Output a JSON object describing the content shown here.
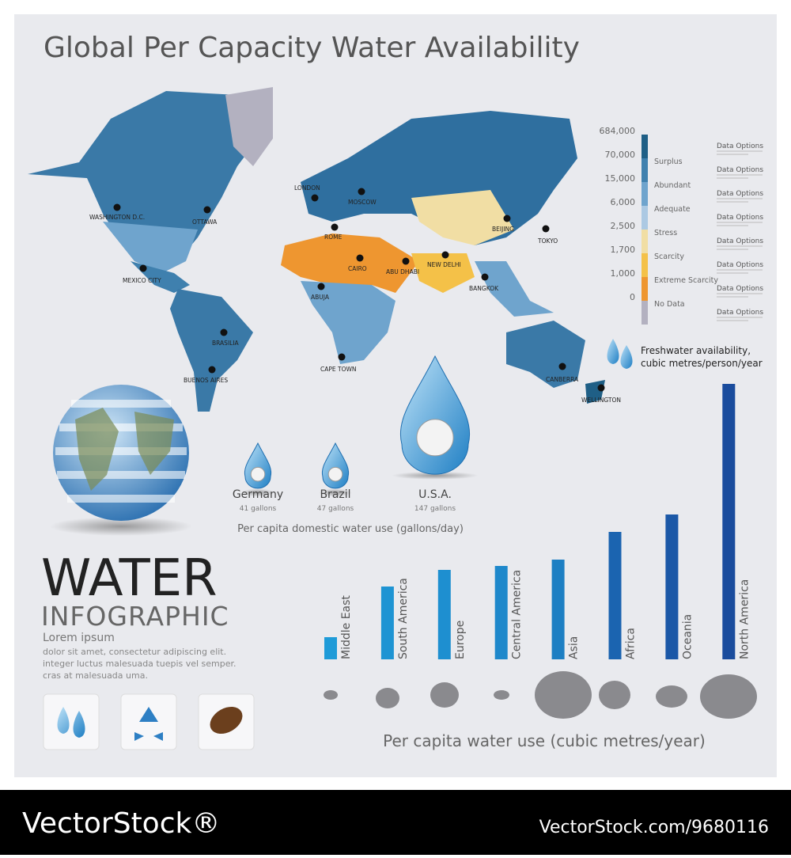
{
  "title": "Global Per Capacity Water Availability",
  "map": {
    "cities": [
      "WASHINGTON D.C.",
      "OTTAWA",
      "MEXICO CITY",
      "BRASILIA",
      "BUENOS AIRES",
      "LONDON",
      "MOSCOW",
      "ROME",
      "CAIRO",
      "ABU DHABI",
      "NEW DELHI",
      "BEIJING",
      "TOKYO",
      "BANGKOK",
      "ABUJA",
      "CAPE TOWN",
      "CANBERRA",
      "WELLINGTON"
    ]
  },
  "legend": {
    "ticks": [
      "684,000",
      "70,000",
      "15,000",
      "6,000",
      "2,500",
      "1,700",
      "1,000",
      "0"
    ],
    "levels": [
      {
        "name": "Surplus",
        "color": "#1f5f86"
      },
      {
        "name": "Abundant",
        "color": "#3f80ae"
      },
      {
        "name": "Adequate",
        "color": "#6fa4cd"
      },
      {
        "name": "Stress",
        "color": "#acc9e3"
      },
      {
        "name": "Scarcity",
        "color": "#f1dea4"
      },
      {
        "name": "Extreme Scarcity",
        "color": "#f4c148"
      },
      {
        "name": "No Data",
        "color": "#ee9630"
      }
    ],
    "nodata_color": "#b3b1c0",
    "options": [
      "Data Options",
      "Data Options",
      "Data Options",
      "Data Options",
      "Data Options",
      "Data Options",
      "Data Options",
      "Data Options"
    ],
    "note": [
      "Freshwater availability,",
      "cubic metres/person/year"
    ]
  },
  "domestic_use": {
    "items": [
      {
        "country": "Germany",
        "amount": "41 gallons"
      },
      {
        "country": "Brazil",
        "amount": "47 gallons"
      },
      {
        "country": "U.S.A.",
        "amount": "147 gallons"
      }
    ],
    "caption": "Per capita domestic water use (gallons/day)"
  },
  "brand": {
    "title": "WATER",
    "subtitle": "INFOGRAPHIC",
    "heading": "Lorem ipsum",
    "body": [
      "dolor sit amet, consectetur adipiscing elit.",
      "integer luctus malesuada tuepis vel semper.",
      "cras at malesuada uma."
    ]
  },
  "chart_data": {
    "type": "bar",
    "categories": [
      "Middle East",
      "South America",
      "Europe",
      "Central America",
      "Asia",
      "Africa",
      "Oceania",
      "North America"
    ],
    "values": [
      28,
      92,
      113,
      118,
      126,
      161,
      183,
      348
    ],
    "colors": [
      "#1e9bd8",
      "#1e94d3",
      "#1e8fd0",
      "#1e88cb",
      "#1d7fc3",
      "#1b64b0",
      "#1b58a7",
      "#1a4c9d"
    ],
    "ylim": [
      0,
      350
    ],
    "x_label": "Per capita water use (cubic metres/year)"
  },
  "footer": {
    "left": "VectorStock®",
    "right": "VectorStock.com/9680116"
  }
}
